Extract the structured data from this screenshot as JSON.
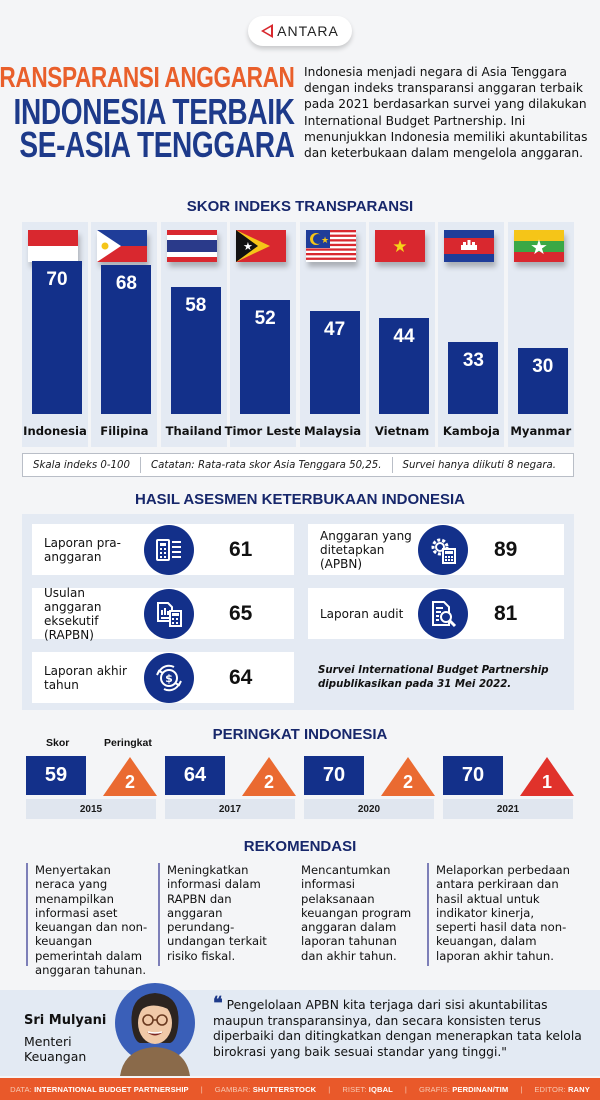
{
  "header": {
    "logo_text": "ANTARA",
    "title_lines": [
      "TRANSPARANSI ANGGARAN",
      "INDONESIA TERBAIK",
      "SE-ASIA TENGGARA"
    ],
    "intro": "Indonesia menjadi negara di Asia Tenggara dengan indeks transparansi anggaran terbaik pada 2021 berdasarkan survei yang dilakukan International Budget Partnership. Ini menunjukkan Indonesia memiliki akuntabilitas dan keterbukaan dalam mengelola anggaran."
  },
  "chart_data": {
    "type": "bar",
    "title": "SKOR INDEKS TRANSPARANSI",
    "categories": [
      "Indonesia",
      "Filipina",
      "Thailand",
      "Timor Leste",
      "Malaysia",
      "Vietnam",
      "Kamboja",
      "Myanmar"
    ],
    "values": [
      70,
      68,
      58,
      52,
      47,
      44,
      33,
      30
    ],
    "flags": [
      "indonesia-flag-icon",
      "philippines-flag-icon",
      "thailand-flag-icon",
      "timor-leste-flag-icon",
      "malaysia-flag-icon",
      "vietnam-flag-icon",
      "cambodia-flag-icon",
      "myanmar-flag-icon"
    ],
    "xlabel": "",
    "ylabel": "",
    "ylim": [
      0,
      100
    ],
    "bar_color": "#13308a"
  },
  "notes": {
    "scale": "Skala indeks 0-100",
    "average": "Catatan: Rata-rata skor Asia Tenggara 50,25.",
    "participants": "Survei hanya diikuti 8 negara."
  },
  "assessment": {
    "title": "HASIL ASESMEN KETERBUKAAN INDONESIA",
    "items": [
      {
        "label": "Laporan pra-anggaran",
        "score": "61",
        "icon": "calculator-document-icon"
      },
      {
        "label": "Usulan anggaran eksekutif (RAPBN)",
        "score": "65",
        "icon": "report-chart-icon"
      },
      {
        "label": "Laporan akhir tahun",
        "score": "64",
        "icon": "money-cycle-icon"
      },
      {
        "label": "Anggaran yang ditetapkan (APBN)",
        "score": "89",
        "icon": "gear-calculator-icon"
      },
      {
        "label": "Laporan audit",
        "score": "81",
        "icon": "document-search-icon"
      }
    ],
    "note": "Survei International Budget Partnership dipublikasikan pada 31 Mei 2022."
  },
  "ranking": {
    "title": "PERINGKAT INDONESIA",
    "score_label": "Skor",
    "rank_label": "Peringkat",
    "years": [
      {
        "year": "2015",
        "score": "59",
        "rank": "2"
      },
      {
        "year": "2017",
        "score": "64",
        "rank": "2"
      },
      {
        "year": "2020",
        "score": "70",
        "rank": "2"
      },
      {
        "year": "2021",
        "score": "70",
        "rank": "1"
      }
    ],
    "colors": {
      "rank_default": "#ea6a31",
      "rank_first": "#e0322b"
    }
  },
  "recommendations": {
    "title": "REKOMENDASI",
    "items": [
      "Menyertakan neraca yang menampilkan informasi aset keuangan dan non-keuangan pemerintah dalam anggaran tahunan.",
      "Meningkatkan informasi dalam RAPBN dan anggaran perundang-undangan terkait risiko fiskal.",
      "Mencantumkan informasi pelaksanaan keuangan program anggaran dalam laporan tahunan dan akhir tahun.",
      "Melaporkan perbedaan antara perkiraan dan hasil aktual untuk indikator kinerja, seperti hasil data non-keuangan, dalam laporan akhir tahun."
    ]
  },
  "quote": {
    "name": "Sri Mulyani",
    "role": "Menteri Keuangan",
    "text": "Pengelolaan APBN kita terjaga dari sisi akuntabilitas maupun transparansinya, dan secara konsisten terus diperbaiki dan ditingkatkan dengan menerapkan tata kelola birokrasi yang baik sesuai standar yang tinggi.\""
  },
  "footer": {
    "credits": [
      {
        "key": "DATA:",
        "value": "INTERNATIONAL BUDGET PARTNERSHIP"
      },
      {
        "key": "GAMBAR:",
        "value": "SHUTTERSTOCK"
      },
      {
        "key": "RISET:",
        "value": "IQBAL"
      },
      {
        "key": "GRAFIS:",
        "value": "PERDINAN/TIM"
      },
      {
        "key": "EDITOR:",
        "value": "RANY"
      }
    ]
  },
  "colors": {
    "navy": "#13308a",
    "title_orange": "#e95f2b",
    "title_blue": "#1d3a8a",
    "footer_orange": "#e9592a",
    "panel_bg": "#e4eaf3"
  }
}
